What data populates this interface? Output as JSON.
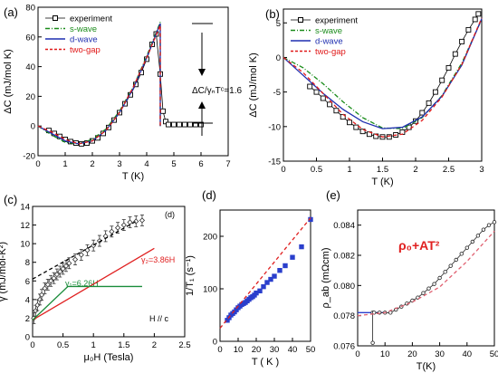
{
  "panels": {
    "a": {
      "label": "(a)",
      "annotation": "ΔC/γₙTᶜ=1.6"
    },
    "b": {
      "label": "(b)"
    },
    "c": {
      "label": "(c)",
      "inner_label": "(d)",
      "annotations": [
        "γ₂=3.86H",
        "γ₁=6.26H",
        "H // c"
      ]
    },
    "d": {
      "label": "(d)"
    },
    "e": {
      "label": "(e)",
      "annotation": "ρ₀+AT²"
    }
  },
  "colors": {
    "experiment": "#000000",
    "s_wave": "#1a8c1a",
    "d_wave": "#1f2fb0",
    "two_gap": "#e01818",
    "fit_red": "#e02020",
    "markers_blue": "#2a3fcc",
    "green_line": "#1a8c3a",
    "dashed_black": "#000000",
    "pink_dashed": "#e06070"
  },
  "chart_data": [
    {
      "id": "a",
      "type": "line",
      "xlabel": "T (K)",
      "ylabel": "ΔC (mJ/mol K)",
      "xlim": [
        0,
        7
      ],
      "ylim": [
        -20,
        80
      ],
      "xticks": [
        "0",
        "1",
        "2",
        "3",
        "4",
        "5",
        "6",
        "7"
      ],
      "yticks": [
        "-20",
        "0",
        "20",
        "40",
        "60",
        "80"
      ],
      "legend": [
        "experiment",
        "s-wave",
        "d-wave",
        "two-gap"
      ],
      "legend_placement": "top-left",
      "series": [
        {
          "name": "experiment",
          "style": "open-squares",
          "x": [
            0.4,
            0.6,
            0.8,
            1.0,
            1.2,
            1.4,
            1.6,
            1.8,
            2.0,
            2.2,
            2.4,
            2.6,
            2.8,
            3.0,
            3.2,
            3.4,
            3.6,
            3.8,
            4.0,
            4.2,
            4.35,
            4.5,
            4.6,
            4.7,
            4.8,
            5.0,
            5.2,
            5.4,
            5.6,
            5.8,
            6.0
          ],
          "y": [
            -3,
            -5,
            -7,
            -9,
            -10.5,
            -11.5,
            -12,
            -11.5,
            -10,
            -8,
            -5,
            -1,
            4,
            9,
            15,
            21,
            28,
            36,
            45,
            55,
            62,
            35,
            10,
            3,
            1,
            1,
            1,
            1,
            1,
            1,
            1
          ]
        },
        {
          "name": "s-wave",
          "style": "dash-dot",
          "x": [
            0,
            0.5,
            1.0,
            1.5,
            2.0,
            2.5,
            3.0,
            3.5,
            4.0,
            4.5,
            4.5
          ],
          "y": [
            0,
            -6,
            -11,
            -12,
            -9,
            -2,
            10,
            26,
            47,
            70,
            0
          ]
        },
        {
          "name": "d-wave",
          "style": "solid",
          "x": [
            0,
            0.5,
            1.0,
            1.5,
            2.0,
            2.5,
            3.0,
            3.5,
            4.0,
            4.5,
            4.5
          ],
          "y": [
            0,
            -5,
            -10,
            -12,
            -10,
            -3,
            9,
            25,
            46,
            69,
            0
          ]
        },
        {
          "name": "two-gap",
          "style": "dashed",
          "x": [
            0,
            0.5,
            1.0,
            1.5,
            2.0,
            2.5,
            3.0,
            3.5,
            4.0,
            4.5,
            4.5
          ],
          "y": [
            0,
            -4,
            -9,
            -12,
            -10,
            -3,
            9,
            26,
            46,
            68,
            0
          ]
        }
      ]
    },
    {
      "id": "b",
      "type": "line",
      "xlabel": "T (K)",
      "ylabel": "ΔC (mJ/mol K)",
      "xlim": [
        0,
        3
      ],
      "ylim": [
        -15,
        7
      ],
      "xticks": [
        "0",
        "0.5",
        "1",
        "1.5",
        "2",
        "2.5",
        "3"
      ],
      "yticks": [
        "-15",
        "-10",
        "-5",
        "0",
        "5"
      ],
      "legend": [
        "experiment",
        "s-wave",
        "d-wave",
        "two-gap"
      ],
      "legend_placement": "top-left",
      "series": [
        {
          "name": "experiment",
          "style": "open-squares",
          "x": [
            0.4,
            0.5,
            0.6,
            0.7,
            0.8,
            0.9,
            1.0,
            1.1,
            1.2,
            1.3,
            1.4,
            1.5,
            1.6,
            1.7,
            1.8,
            1.9,
            2.0,
            2.1,
            2.2,
            2.3,
            2.4,
            2.5,
            2.6,
            2.7,
            2.8,
            2.9,
            2.95
          ],
          "y": [
            -4.2,
            -5.0,
            -5.9,
            -6.8,
            -7.7,
            -8.6,
            -9.4,
            -10.1,
            -10.7,
            -11.1,
            -11.4,
            -11.5,
            -11.5,
            -11.2,
            -10.8,
            -10.1,
            -9.2,
            -8.0,
            -6.6,
            -5.0,
            -3.3,
            -1.5,
            0.5,
            2.3,
            4.0,
            5.5,
            6.3
          ]
        },
        {
          "name": "s-wave",
          "style": "dash-dot",
          "x": [
            0,
            0.3,
            0.6,
            0.9,
            1.2,
            1.5,
            1.8,
            2.1,
            2.4,
            2.7,
            3.0
          ],
          "y": [
            0,
            -1.5,
            -3.8,
            -6.4,
            -8.7,
            -10.2,
            -10.3,
            -8.7,
            -5.5,
            -0.8,
            5.5
          ]
        },
        {
          "name": "d-wave",
          "style": "solid",
          "x": [
            0,
            0.3,
            0.6,
            0.9,
            1.2,
            1.5,
            1.8,
            2.1,
            2.4,
            2.7,
            3.0
          ],
          "y": [
            0,
            -2.6,
            -5.2,
            -7.5,
            -9.3,
            -10.3,
            -10.1,
            -8.6,
            -5.6,
            -1.1,
            5.6
          ]
        },
        {
          "name": "two-gap",
          "style": "dashed",
          "x": [
            0,
            0.3,
            0.6,
            0.9,
            1.2,
            1.5,
            1.8,
            2.1,
            2.4,
            2.7,
            3.0
          ],
          "y": [
            0,
            -2.2,
            -5.2,
            -8.2,
            -10.4,
            -11.5,
            -11.1,
            -9.1,
            -5.7,
            -1.0,
            5.7
          ]
        }
      ]
    },
    {
      "id": "c",
      "type": "line",
      "xlabel": "μ₀H (Tesla)",
      "ylabel": "γ (mJ/mol-K²)",
      "xlim": [
        0,
        2.5
      ],
      "ylim": [
        0,
        14
      ],
      "xticks": [
        "0",
        "0.5",
        "1",
        "1.5",
        "2",
        "2.5"
      ],
      "yticks": [
        "0",
        "2",
        "4",
        "6",
        "8",
        "10",
        "12",
        "14"
      ],
      "series": [
        {
          "name": "data",
          "style": "errorbar-diamond",
          "x": [
            0.02,
            0.05,
            0.08,
            0.12,
            0.15,
            0.2,
            0.25,
            0.3,
            0.35,
            0.4,
            0.45,
            0.5,
            0.55,
            0.6,
            0.7,
            0.8,
            0.9,
            1.0,
            1.1,
            1.2,
            1.3,
            1.4,
            1.5,
            1.6,
            1.7,
            1.8
          ],
          "y": [
            2.0,
            2.8,
            3.4,
            4.0,
            4.5,
            5.2,
            5.6,
            6.0,
            6.3,
            6.7,
            7.0,
            7.3,
            7.6,
            7.9,
            8.3,
            8.8,
            9.3,
            9.8,
            10.3,
            10.8,
            11.3,
            11.7,
            12.0,
            12.3,
            12.4,
            12.5
          ]
        },
        {
          "name": "γ₂=3.86H",
          "style": "solid",
          "x": [
            0,
            2.0
          ],
          "y": [
            1.8,
            9.5
          ]
        },
        {
          "name": "γ₁=6.26H",
          "style": "solid",
          "x": [
            0,
            0.58,
            1.8
          ],
          "y": [
            1.8,
            5.4,
            5.4
          ]
        },
        {
          "name": "fit",
          "style": "dashed",
          "x": [
            0,
            1.7
          ],
          "y": [
            6.2,
            12.4
          ]
        }
      ]
    },
    {
      "id": "d",
      "type": "scatter",
      "xlabel": "T ( K )",
      "ylabel": "1/T₁ (s⁻¹)",
      "xlim": [
        0,
        50
      ],
      "ylim": [
        0,
        250
      ],
      "xticks": [
        "0",
        "10",
        "20",
        "30",
        "40",
        "50"
      ],
      "yticks": [
        "0",
        "100",
        "200"
      ],
      "series": [
        {
          "name": "data",
          "style": "blue-squares",
          "x": [
            4,
            5,
            6,
            7,
            8,
            9,
            10,
            11,
            12,
            13,
            14,
            15,
            16,
            17,
            18,
            19,
            20,
            22,
            24,
            26,
            28,
            30,
            33,
            36,
            40,
            45,
            50
          ],
          "y": [
            40,
            45,
            50,
            53,
            56,
            60,
            64,
            67,
            70,
            72,
            74,
            77,
            80,
            83,
            85,
            88,
            92,
            96,
            104,
            112,
            118,
            124,
            135,
            144,
            160,
            180,
            232
          ]
        },
        {
          "name": "fit",
          "style": "dashed-red",
          "x": [
            0,
            50
          ],
          "y": [
            25,
            235
          ]
        }
      ]
    },
    {
      "id": "e",
      "type": "line",
      "xlabel": "T(K)",
      "ylabel": "ρ_ab (mΩcm)",
      "xlim": [
        0,
        50
      ],
      "ylim": [
        0.076,
        0.085
      ],
      "xticks": [
        "0",
        "10",
        "20",
        "30",
        "40",
        "50"
      ],
      "yticks": [
        "0.076",
        "0.078",
        "0.080",
        "0.082",
        "0.084"
      ],
      "series": [
        {
          "name": "data-blue",
          "style": "blue-line",
          "x": [
            0,
            2,
            4,
            5,
            6,
            7,
            8,
            9,
            10
          ],
          "y": [
            0.0782,
            0.0782,
            0.0782,
            0.0782,
            0.0782,
            0.0782,
            0.0782,
            0.0782,
            0.0782
          ]
        },
        {
          "name": "data",
          "style": "open-circles",
          "x": [
            5.5,
            5.5,
            6,
            8,
            10,
            12,
            14,
            16,
            18,
            20,
            22,
            24,
            26,
            28,
            30,
            32,
            34,
            36,
            38,
            40,
            42,
            44,
            46,
            48,
            50
          ],
          "y": [
            0.0762,
            0.0782,
            0.0782,
            0.0782,
            0.0782,
            0.0782,
            0.0784,
            0.0786,
            0.0788,
            0.079,
            0.0792,
            0.0795,
            0.0798,
            0.0801,
            0.0805,
            0.0809,
            0.0813,
            0.0817,
            0.0821,
            0.0825,
            0.0829,
            0.0833,
            0.0837,
            0.084,
            0.0842
          ]
        },
        {
          "name": "ρ₀+AT²",
          "style": "dashed-pink",
          "x": [
            0,
            10,
            20,
            30,
            40,
            50
          ],
          "y": [
            0.078,
            0.0782,
            0.0789,
            0.0799,
            0.0816,
            0.0836
          ]
        }
      ]
    }
  ]
}
